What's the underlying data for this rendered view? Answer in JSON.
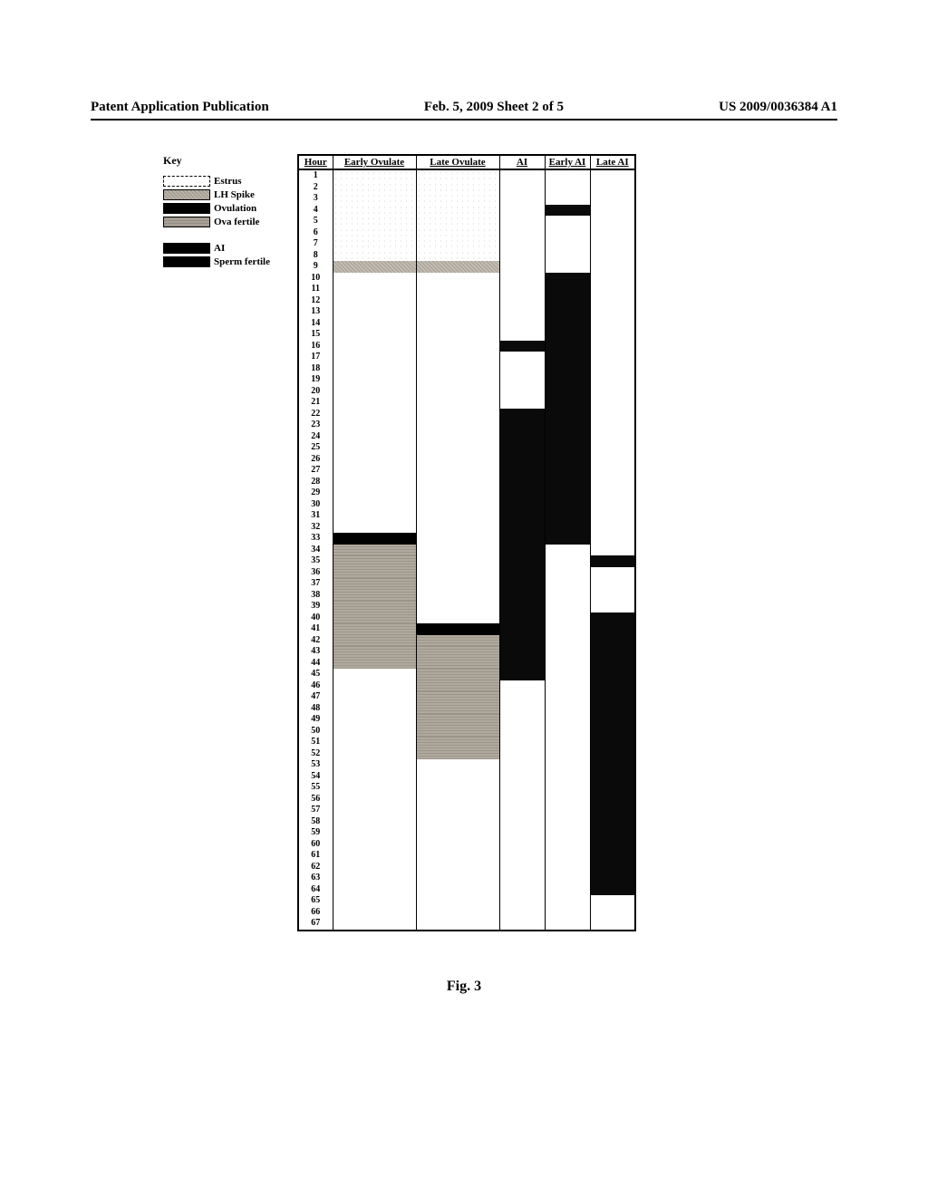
{
  "header": {
    "left": "Patent Application Publication",
    "center": "Feb. 5, 2009  Sheet 2 of 5",
    "right": "US 2009/0036384 A1"
  },
  "caption": "Fig. 3",
  "key": {
    "title": "Key",
    "items": [
      {
        "label": "Estrus",
        "color": "#ffffff",
        "pattern": "dashed"
      },
      {
        "label": "LH Spike",
        "color": "#b9b2a7",
        "pattern": "noise"
      },
      {
        "label": "Ovulation",
        "color": "#000000",
        "pattern": "solid"
      },
      {
        "label": "Ova fertile",
        "color": "#a8a096",
        "pattern": "grain"
      }
    ],
    "group2": [
      {
        "label": "AI",
        "color": "#000000",
        "pattern": "solid"
      },
      {
        "label": "Sperm fertile",
        "color": "#000000",
        "pattern": "solid"
      }
    ]
  },
  "table": {
    "columns": [
      "Hour",
      "Early Ovulate",
      "Late Ovulate",
      "AI",
      "Early AI",
      "Late AI"
    ],
    "col_classes": [
      "col-hour",
      "col-wide",
      "col-wide",
      "col-narrow",
      "col-narrow",
      "col-narrow"
    ],
    "hours": 67,
    "colors": {
      "estrus": "#ffffff",
      "lh_noise": "#c2bcb2",
      "ovulation": "#000000",
      "ova": "#b0a99d",
      "ai_black": "#0a0a0a",
      "empty": "#ffffff"
    },
    "borders": {
      "lh_noise": "rgba(0,0,0,0.15)",
      "ova": "rgba(0,0,0,0.12)"
    },
    "early_ovulate": [
      {
        "from": 1,
        "to": 8,
        "fill": "estrus",
        "dotted": true
      },
      {
        "from": 9,
        "to": 9,
        "fill": "lh_noise"
      },
      {
        "from": 10,
        "to": 32,
        "fill": "empty"
      },
      {
        "from": 33,
        "to": 33,
        "fill": "ovulation"
      },
      {
        "from": 34,
        "to": 44,
        "fill": "ova"
      },
      {
        "from": 45,
        "to": 67,
        "fill": "empty"
      }
    ],
    "late_ovulate": [
      {
        "from": 1,
        "to": 8,
        "fill": "estrus",
        "dotted": true
      },
      {
        "from": 9,
        "to": 9,
        "fill": "lh_noise"
      },
      {
        "from": 10,
        "to": 40,
        "fill": "empty"
      },
      {
        "from": 41,
        "to": 41,
        "fill": "ovulation"
      },
      {
        "from": 42,
        "to": 52,
        "fill": "ova"
      },
      {
        "from": 53,
        "to": 67,
        "fill": "empty"
      }
    ],
    "ai_col": [
      {
        "from": 1,
        "to": 15,
        "fill": "empty"
      },
      {
        "from": 16,
        "to": 16,
        "fill": "ai_black"
      },
      {
        "from": 17,
        "to": 21,
        "fill": "empty"
      },
      {
        "from": 22,
        "to": 45,
        "fill": "ai_black"
      },
      {
        "from": 46,
        "to": 67,
        "fill": "empty"
      }
    ],
    "early_ai": [
      {
        "from": 1,
        "to": 3,
        "fill": "empty"
      },
      {
        "from": 4,
        "to": 4,
        "fill": "ai_black"
      },
      {
        "from": 5,
        "to": 9,
        "fill": "empty"
      },
      {
        "from": 10,
        "to": 33,
        "fill": "ai_black"
      },
      {
        "from": 34,
        "to": 67,
        "fill": "empty"
      }
    ],
    "late_ai": [
      {
        "from": 1,
        "to": 34,
        "fill": "empty"
      },
      {
        "from": 35,
        "to": 35,
        "fill": "ai_black"
      },
      {
        "from": 36,
        "to": 39,
        "fill": "empty"
      },
      {
        "from": 40,
        "to": 64,
        "fill": "ai_black"
      },
      {
        "from": 65,
        "to": 67,
        "fill": "empty"
      }
    ]
  }
}
